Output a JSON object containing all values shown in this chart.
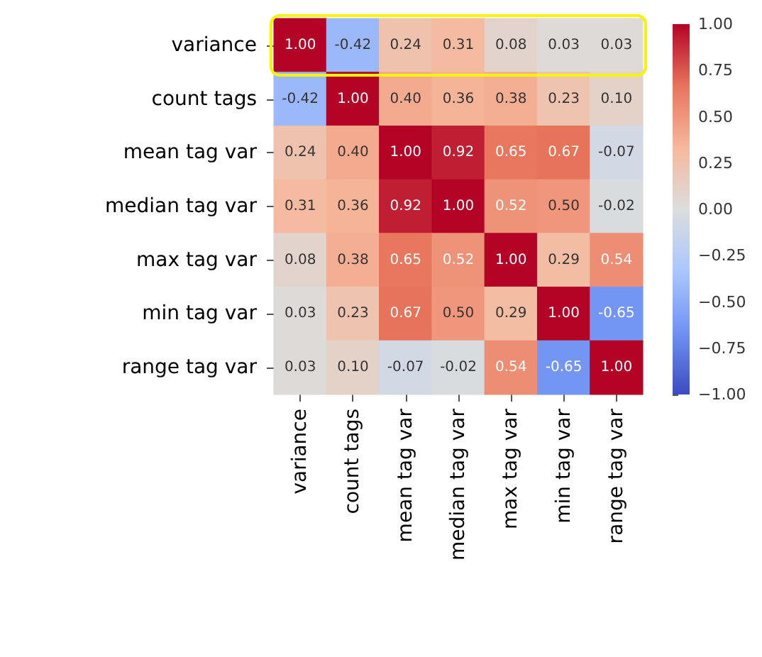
{
  "chart_data": {
    "type": "heatmap",
    "categories": [
      "variance",
      "count tags",
      "mean tag var",
      "median tag var",
      "max tag var",
      "min tag var",
      "range tag var"
    ],
    "y_categories": [
      "variance",
      "count tags",
      "mean tag var",
      "median tag var",
      "max tag var",
      "min tag var",
      "range tag var"
    ],
    "cells": [
      [
        1,
        -0.42,
        0.24,
        0.31,
        0.08,
        0.03,
        0.03
      ],
      [
        -0.42,
        1,
        0.4,
        0.36,
        0.38,
        0.23,
        0.1
      ],
      [
        0.24,
        0.4,
        1,
        0.92,
        0.65,
        0.67,
        -0.07
      ],
      [
        0.31,
        0.36,
        0.92,
        1,
        0.52,
        0.5,
        -0.02
      ],
      [
        0.08,
        0.38,
        0.65,
        0.52,
        1,
        0.29,
        0.54
      ],
      [
        0.03,
        0.23,
        0.67,
        0.5,
        0.29,
        1,
        -0.65
      ],
      [
        0.03,
        0.1,
        -0.07,
        -0.02,
        0.54,
        -0.65,
        1
      ]
    ],
    "cell_labels": [
      [
        "1.00",
        "-0.42",
        "0.24",
        "0.31",
        "0.08",
        "0.03",
        "0.03"
      ],
      [
        "-0.42",
        "1.00",
        "0.40",
        "0.36",
        "0.38",
        "0.23",
        "0.10"
      ],
      [
        "0.24",
        "0.40",
        "1.00",
        "0.92",
        "0.65",
        "0.67",
        "-0.07"
      ],
      [
        "0.31",
        "0.36",
        "0.92",
        "1.00",
        "0.52",
        "0.50",
        "-0.02"
      ],
      [
        "0.08",
        "0.38",
        "0.65",
        "0.52",
        "1.00",
        "0.29",
        "0.54"
      ],
      [
        "0.03",
        "0.23",
        "0.67",
        "0.50",
        "0.29",
        "1.00",
        "-0.65"
      ],
      [
        "0.03",
        "0.10",
        "-0.07",
        "-0.02",
        "0.54",
        "-0.65",
        "1.00"
      ]
    ],
    "clim": [
      -1,
      1
    ],
    "cticks": [
      {
        "value": 1,
        "label": "1.00"
      },
      {
        "value": 0.75,
        "label": "0.75"
      },
      {
        "value": 0.5,
        "label": "0.50"
      },
      {
        "value": 0.25,
        "label": "0.25"
      },
      {
        "value": 0,
        "label": "0.00"
      },
      {
        "value": -0.25,
        "label": "−0.25"
      },
      {
        "value": -0.5,
        "label": "−0.50"
      },
      {
        "value": -0.75,
        "label": "−0.75"
      },
      {
        "value": -1,
        "label": "−1.00"
      }
    ]
  }
}
